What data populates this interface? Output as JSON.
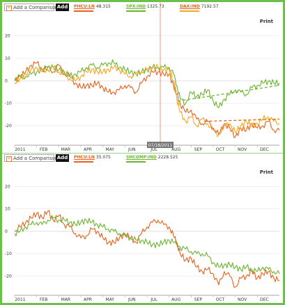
{
  "toolbar": {
    "compare_placeholder": "Add a Comparison",
    "add_label": "Add",
    "print_label": "Print"
  },
  "chart_data": [
    {
      "type": "line",
      "legend": [
        {
          "name": "PHCU:LN",
          "value": "48.315",
          "color": "#e8601c"
        },
        {
          "name": "SPX:IND",
          "value": "1325.73",
          "color": "#6ab42d"
        },
        {
          "name": "DAX:IND",
          "value": "7192.57",
          "color": "#f5a623"
        }
      ],
      "x_labels": [
        "2011",
        "FEB",
        "MAR",
        "APR",
        "MAY",
        "JUN",
        "JUL",
        "AUG",
        "SEP",
        "OCT",
        "NOV",
        "DEC"
      ],
      "y_ticks": [
        20,
        10,
        0,
        -10,
        -20
      ],
      "ylim": [
        -28,
        27
      ],
      "xlim": [
        0,
        12
      ],
      "crosshair": {
        "x": 6.6,
        "label": "07/18/2011"
      },
      "grid": "horizontal",
      "series": [
        {
          "name": "PHCU:LN",
          "color": "#e8601c",
          "points": [
            [
              0,
              0
            ],
            [
              0.25,
              2
            ],
            [
              0.5,
              4
            ],
            [
              0.75,
              7
            ],
            [
              1.0,
              8
            ],
            [
              1.25,
              5
            ],
            [
              1.5,
              6
            ],
            [
              1.75,
              4
            ],
            [
              2.0,
              7
            ],
            [
              2.25,
              3
            ],
            [
              2.5,
              2
            ],
            [
              2.75,
              -1
            ],
            [
              3.0,
              -3
            ],
            [
              3.25,
              -2
            ],
            [
              3.5,
              -2
            ],
            [
              3.75,
              -1
            ],
            [
              4.0,
              -3
            ],
            [
              4.25,
              -5
            ],
            [
              4.5,
              -5
            ],
            [
              4.75,
              -4
            ],
            [
              5.0,
              -2
            ],
            [
              5.25,
              -3
            ],
            [
              5.5,
              -5
            ],
            [
              5.75,
              -1
            ],
            [
              6.0,
              2
            ],
            [
              6.25,
              4
            ],
            [
              6.5,
              4
            ],
            [
              6.75,
              3
            ],
            [
              7.0,
              3
            ],
            [
              7.2,
              -2
            ],
            [
              7.35,
              -6
            ],
            [
              7.5,
              -10
            ],
            [
              7.75,
              -14
            ],
            [
              8.0,
              -13
            ],
            [
              8.25,
              -17
            ],
            [
              8.5,
              -19
            ],
            [
              8.75,
              -18
            ],
            [
              9.0,
              -21
            ],
            [
              9.25,
              -24
            ],
            [
              9.5,
              -19
            ],
            [
              9.75,
              -21
            ],
            [
              10.0,
              -25
            ],
            [
              10.25,
              -21
            ],
            [
              10.5,
              -22
            ],
            [
              10.75,
              -19
            ],
            [
              11.0,
              -21
            ],
            [
              11.25,
              -20
            ],
            [
              11.5,
              -18
            ],
            [
              11.75,
              -22
            ],
            [
              12.0,
              -22
            ]
          ]
        },
        {
          "name": "SPX:IND",
          "color": "#6ab42d",
          "points": [
            [
              0,
              1
            ],
            [
              0.25,
              2
            ],
            [
              0.5,
              2
            ],
            [
              0.75,
              3
            ],
            [
              1.0,
              4
            ],
            [
              1.25,
              5
            ],
            [
              1.5,
              6
            ],
            [
              1.75,
              6
            ],
            [
              2.0,
              5
            ],
            [
              2.25,
              4
            ],
            [
              2.5,
              2
            ],
            [
              2.75,
              3
            ],
            [
              3.0,
              4
            ],
            [
              3.25,
              6
            ],
            [
              3.5,
              7
            ],
            [
              3.75,
              6
            ],
            [
              4.0,
              7
            ],
            [
              4.25,
              8
            ],
            [
              4.5,
              8
            ],
            [
              4.75,
              6
            ],
            [
              5.0,
              5
            ],
            [
              5.25,
              4
            ],
            [
              5.5,
              3
            ],
            [
              5.75,
              4
            ],
            [
              6.0,
              5
            ],
            [
              6.25,
              6
            ],
            [
              6.5,
              6
            ],
            [
              6.75,
              6
            ],
            [
              7.0,
              6
            ],
            [
              7.2,
              3
            ],
            [
              7.35,
              -2
            ],
            [
              7.5,
              -8
            ],
            [
              7.75,
              -10
            ],
            [
              8.0,
              -5
            ],
            [
              8.25,
              -7
            ],
            [
              8.5,
              -6
            ],
            [
              8.75,
              -4
            ],
            [
              9.0,
              -9
            ],
            [
              9.25,
              -12
            ],
            [
              9.5,
              -8
            ],
            [
              9.75,
              -6
            ],
            [
              10.0,
              -4
            ],
            [
              10.25,
              -5
            ],
            [
              10.5,
              -6
            ],
            [
              10.75,
              -3
            ],
            [
              11.0,
              -2
            ],
            [
              11.25,
              -1
            ],
            [
              11.5,
              0
            ],
            [
              11.75,
              -1
            ],
            [
              12.0,
              -1
            ]
          ]
        },
        {
          "name": "DAX:IND",
          "color": "#f5a623",
          "points": [
            [
              0,
              -1
            ],
            [
              0.25,
              1
            ],
            [
              0.5,
              3
            ],
            [
              0.75,
              5
            ],
            [
              1.0,
              6
            ],
            [
              1.25,
              4
            ],
            [
              1.5,
              5
            ],
            [
              1.75,
              6
            ],
            [
              2.0,
              4
            ],
            [
              2.25,
              3
            ],
            [
              2.5,
              1
            ],
            [
              2.75,
              0
            ],
            [
              3.0,
              2
            ],
            [
              3.25,
              4
            ],
            [
              3.5,
              5
            ],
            [
              3.75,
              4
            ],
            [
              4.0,
              4
            ],
            [
              4.25,
              5
            ],
            [
              4.5,
              6
            ],
            [
              4.75,
              5
            ],
            [
              5.0,
              3
            ],
            [
              5.25,
              2
            ],
            [
              5.5,
              3
            ],
            [
              5.75,
              4
            ],
            [
              6.0,
              5
            ],
            [
              6.25,
              6
            ],
            [
              6.5,
              6
            ],
            [
              6.75,
              5
            ],
            [
              7.0,
              5
            ],
            [
              7.2,
              0
            ],
            [
              7.35,
              -8
            ],
            [
              7.5,
              -14
            ],
            [
              7.75,
              -18
            ],
            [
              8.0,
              -16
            ],
            [
              8.25,
              -20
            ],
            [
              8.5,
              -17
            ],
            [
              8.75,
              -19
            ],
            [
              9.0,
              -22
            ],
            [
              9.25,
              -24
            ],
            [
              9.5,
              -20
            ],
            [
              9.75,
              -19
            ],
            [
              10.0,
              -23
            ],
            [
              10.25,
              -20
            ],
            [
              10.5,
              -18
            ],
            [
              10.75,
              -20
            ],
            [
              11.0,
              -19
            ],
            [
              11.25,
              -17
            ],
            [
              11.5,
              -16
            ],
            [
              11.75,
              -18
            ],
            [
              12.0,
              -19
            ]
          ]
        }
      ],
      "trendlines": [
        {
          "color": "#6ab42d",
          "from": [
            7.4,
            -9
          ],
          "to": [
            12.0,
            -2
          ]
        },
        {
          "color": "#e8601c",
          "from": [
            8.6,
            -18
          ],
          "to": [
            12.0,
            -17
          ]
        }
      ]
    },
    {
      "type": "line",
      "legend": [
        {
          "name": "PHCU:LN",
          "value": "35.075",
          "color": "#e8601c"
        },
        {
          "name": "SHCOMP:IND",
          "value": "2228.525",
          "color": "#6ab42d"
        }
      ],
      "x_labels": [
        "2011",
        "FEB",
        "MAR",
        "APR",
        "MAY",
        "JUN",
        "JUL",
        "AUG",
        "SEP",
        "OCT",
        "NOV",
        "DEC"
      ],
      "y_ticks": [
        20,
        10,
        0,
        -10,
        -20
      ],
      "ylim": [
        -28,
        27
      ],
      "xlim": [
        0,
        12
      ],
      "grid": "horizontal",
      "series": [
        {
          "name": "PHCU:LN",
          "color": "#e8601c",
          "points": [
            [
              0,
              0
            ],
            [
              0.25,
              2
            ],
            [
              0.5,
              4
            ],
            [
              0.75,
              6
            ],
            [
              1.0,
              8
            ],
            [
              1.25,
              6
            ],
            [
              1.5,
              9
            ],
            [
              1.75,
              5
            ],
            [
              2.0,
              7
            ],
            [
              2.25,
              3
            ],
            [
              2.5,
              2
            ],
            [
              2.75,
              -1
            ],
            [
              3.0,
              -3
            ],
            [
              3.25,
              -2
            ],
            [
              3.5,
              1
            ],
            [
              3.75,
              0
            ],
            [
              4.0,
              -3
            ],
            [
              4.25,
              -5
            ],
            [
              4.5,
              -5
            ],
            [
              4.75,
              -3
            ],
            [
              5.0,
              -1
            ],
            [
              5.25,
              -3
            ],
            [
              5.5,
              -5
            ],
            [
              5.75,
              -1
            ],
            [
              6.0,
              2
            ],
            [
              6.25,
              4
            ],
            [
              6.5,
              5
            ],
            [
              6.75,
              3
            ],
            [
              7.0,
              2
            ],
            [
              7.2,
              -2
            ],
            [
              7.35,
              -5
            ],
            [
              7.5,
              -10
            ],
            [
              7.75,
              -13
            ],
            [
              8.0,
              -12
            ],
            [
              8.25,
              -16
            ],
            [
              8.5,
              -18
            ],
            [
              8.75,
              -17
            ],
            [
              9.0,
              -19
            ],
            [
              9.25,
              -24
            ],
            [
              9.5,
              -18
            ],
            [
              9.75,
              -20
            ],
            [
              10.0,
              -25
            ],
            [
              10.25,
              -21
            ],
            [
              10.5,
              -20
            ],
            [
              10.75,
              -18
            ],
            [
              11.0,
              -21
            ],
            [
              11.25,
              -19
            ],
            [
              11.5,
              -18
            ],
            [
              11.75,
              -21
            ],
            [
              12.0,
              -22
            ]
          ]
        },
        {
          "name": "SHCOMP:IND",
          "color": "#6ab42d",
          "points": [
            [
              0,
              -1
            ],
            [
              0.25,
              0
            ],
            [
              0.5,
              2
            ],
            [
              0.75,
              3
            ],
            [
              1.0,
              4
            ],
            [
              1.25,
              3
            ],
            [
              1.5,
              5
            ],
            [
              1.75,
              6
            ],
            [
              2.0,
              5
            ],
            [
              2.25,
              5
            ],
            [
              2.5,
              4
            ],
            [
              2.75,
              3
            ],
            [
              3.0,
              4
            ],
            [
              3.25,
              5
            ],
            [
              3.5,
              4
            ],
            [
              3.75,
              3
            ],
            [
              4.0,
              2
            ],
            [
              4.25,
              1
            ],
            [
              4.5,
              0
            ],
            [
              4.75,
              -1
            ],
            [
              5.0,
              -2
            ],
            [
              5.25,
              -3
            ],
            [
              5.5,
              -4
            ],
            [
              5.75,
              -4
            ],
            [
              6.0,
              -5
            ],
            [
              6.25,
              -6
            ],
            [
              6.5,
              -6
            ],
            [
              6.75,
              -5
            ],
            [
              7.0,
              -4
            ],
            [
              7.25,
              -5
            ],
            [
              7.5,
              -7
            ],
            [
              7.75,
              -8
            ],
            [
              8.0,
              -9
            ],
            [
              8.25,
              -10
            ],
            [
              8.5,
              -10
            ],
            [
              8.75,
              -11
            ],
            [
              9.0,
              -14
            ],
            [
              9.25,
              -16
            ],
            [
              9.5,
              -15
            ],
            [
              9.75,
              -15
            ],
            [
              10.0,
              -16
            ],
            [
              10.25,
              -17
            ],
            [
              10.5,
              -16
            ],
            [
              10.75,
              -17
            ],
            [
              11.0,
              -18
            ],
            [
              11.25,
              -16
            ],
            [
              11.5,
              -17
            ],
            [
              11.75,
              -18
            ],
            [
              12.0,
              -19
            ]
          ]
        }
      ]
    }
  ]
}
